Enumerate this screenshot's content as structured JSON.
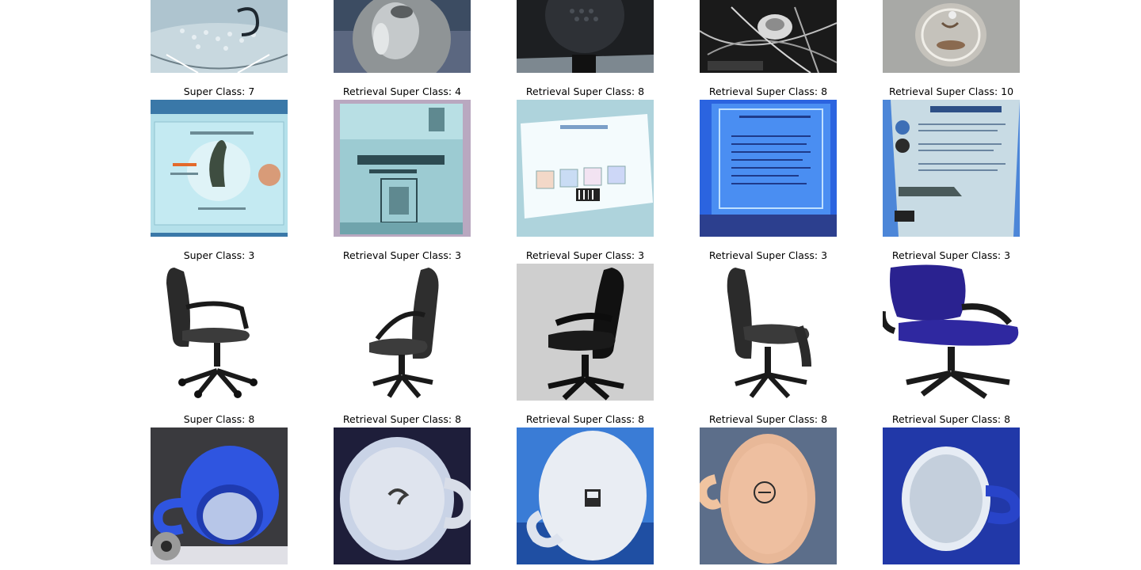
{
  "grid": {
    "rows": [
      {
        "captions": [
          "",
          "",
          "",
          "",
          ""
        ],
        "images": [
          "white-dotted-mug-partial",
          "silver-kettle-partial",
          "black-object-partial",
          "dark-tangled-wires-partial",
          "glass-bulb-partial"
        ]
      },
      {
        "captions": [
          "Super Class: 7",
          "Retrieval Super Class: 4",
          "Retrieval Super Class: 8",
          "Retrieval Super Class: 8",
          "Retrieval Super Class: 10"
        ],
        "images": [
          "certificate-of-authenticity-card",
          "westmark-product-box",
          "mug-set-box-card",
          "blue-recipe-card",
          "product-instruction-card"
        ]
      },
      {
        "captions": [
          "Super Class: 3",
          "Retrieval Super Class: 3",
          "Retrieval Super Class: 3",
          "Retrieval Super Class: 3",
          "Retrieval Super Class: 3"
        ],
        "images": [
          "black-office-chair-side",
          "black-office-chair-side-small",
          "black-office-chair-gray-background",
          "black-office-chair-reclined",
          "blue-fabric-office-chair"
        ]
      },
      {
        "captions": [
          "Super Class: 8",
          "Retrieval Super Class: 8",
          "Retrieval Super Class: 8",
          "Retrieval Super Class: 8",
          "Retrieval Super Class: 8"
        ],
        "images": [
          "blue-mug-top-view",
          "white-mug-bottom-view",
          "white-mug-bottom-logo",
          "peach-mug-bottom-view",
          "white-mug-inside-blue-background"
        ]
      }
    ]
  }
}
